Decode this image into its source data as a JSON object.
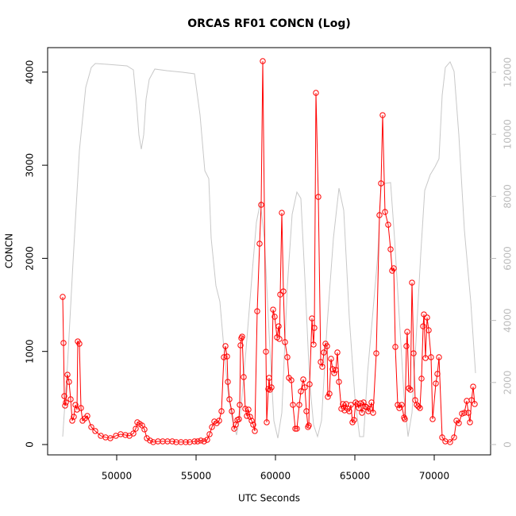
{
  "chart_data": {
    "type": "line",
    "title": "ORCAS RF01 CONCN (Log)",
    "xlabel": "UTC Seconds",
    "ylabel": "CONCN",
    "xlim": [
      45650,
      73550
    ],
    "xticks": [
      50000,
      55000,
      60000,
      65000,
      70000
    ],
    "ylim": [
      -111,
      4263
    ],
    "yticks": [
      0,
      1000,
      2000,
      3000,
      4000
    ],
    "y2lim": [
      -333,
      12794
    ],
    "y2ticks": [
      0,
      2000,
      4000,
      6000,
      8000,
      10000,
      12000
    ],
    "y2color": "#bbbbbb",
    "series": [
      {
        "color": "#ff0000",
        "marker": "circle",
        "x": [
          46600,
          46650,
          46700,
          46750,
          46800,
          46900,
          47000,
          47100,
          47200,
          47300,
          47400,
          47500,
          47550,
          47650,
          47750,
          47850,
          48000,
          48150,
          48400,
          48650,
          49000,
          49300,
          49600,
          49950,
          50250,
          50550,
          50800,
          51050,
          51200,
          51300,
          51450,
          51600,
          51750,
          51900,
          52100,
          52300,
          52600,
          52900,
          53200,
          53500,
          53750,
          54050,
          54350,
          54600,
          54900,
          55100,
          55300,
          55500,
          55700,
          55850,
          56000,
          56150,
          56300,
          56450,
          56600,
          56750,
          56850,
          56950,
          57000,
          57100,
          57250,
          57400,
          57500,
          57600,
          57700,
          57750,
          57800,
          57850,
          57900,
          58000,
          58100,
          58200,
          58300,
          58400,
          58500,
          58600,
          58700,
          58850,
          59000,
          59100,
          59200,
          59400,
          59450,
          59550,
          59600,
          59650,
          59750,
          59850,
          59950,
          60100,
          60200,
          60250,
          60300,
          60400,
          60500,
          60600,
          60750,
          60850,
          61000,
          61100,
          61250,
          61350,
          61500,
          61600,
          61750,
          61850,
          61950,
          62050,
          62100,
          62150,
          62300,
          62400,
          62450,
          62550,
          62700,
          62850,
          62950,
          63050,
          63150,
          63250,
          63300,
          63400,
          63500,
          63600,
          63700,
          63800,
          63900,
          64000,
          64150,
          64250,
          64350,
          64450,
          64550,
          64650,
          64750,
          64850,
          64950,
          65050,
          65150,
          65250,
          65350,
          65450,
          65550,
          65650,
          65750,
          65850,
          65950,
          66050,
          66150,
          66350,
          66550,
          66650,
          66750,
          66900,
          67100,
          67250,
          67350,
          67450,
          67550,
          67700,
          67800,
          67950,
          68100,
          68150,
          68250,
          68300,
          68400,
          68500,
          68600,
          68700,
          68800,
          68900,
          69000,
          69100,
          69200,
          69300,
          69350,
          69450,
          69550,
          69650,
          69800,
          69900,
          70100,
          70200,
          70300,
          70500,
          70700,
          71000,
          71250,
          71400,
          71550,
          71750,
          71900,
          72050,
          72150,
          72250,
          72350,
          72450,
          72550
        ],
        "values": [
          1586,
          1091,
          520,
          418,
          452,
          750,
          673,
          486,
          256,
          298,
          426,
          375,
          1108,
          1083,
          392,
          256,
          281,
          307,
          188,
          145,
          94,
          77,
          68,
          94,
          111,
          102,
          94,
          119,
          170,
          239,
          222,
          205,
          162,
          68,
          43,
          26,
          34,
          34,
          34,
          34,
          26,
          26,
          26,
          26,
          34,
          34,
          43,
          34,
          51,
          111,
          188,
          247,
          230,
          256,
          358,
          938,
          1057,
          946,
          673,
          486,
          358,
          170,
          213,
          264,
          273,
          426,
          1066,
          1142,
          1159,
          725,
          384,
          307,
          375,
          298,
          256,
          213,
          145,
          1432,
          2157,
          2575,
          4118,
          997,
          239,
          597,
          716,
          588,
          614,
          1449,
          1373,
          1151,
          1270,
          1134,
          1611,
          2489,
          1645,
          1100,
          938,
          716,
          691,
          426,
          170,
          170,
          426,
          571,
          699,
          614,
          358,
          188,
          205,
          648,
          1355,
          1074,
          1253,
          3777,
          2660,
          887,
          835,
          989,
          1083,
          1057,
          512,
          546,
          921,
          810,
          767,
          801,
          989,
          673,
          384,
          435,
          367,
          435,
          384,
          358,
          426,
          239,
          264,
          452,
          435,
          392,
          443,
          341,
          452,
          409,
          401,
          358,
          384,
          452,
          341,
          980,
          2464,
          2805,
          3538,
          2498,
          2361,
          2097,
          1867,
          1893,
          1049,
          426,
          392,
          426,
          290,
          273,
          1057,
          1211,
          605,
          588,
          1739,
          980,
          477,
          426,
          409,
          392,
          708,
          1270,
          1398,
          929,
          1364,
          1228,
          938,
          273,
          656,
          759,
          938,
          77,
          34,
          26,
          77,
          256,
          230,
          332,
          341,
          469,
          341,
          239,
          477,
          622,
          435
        ]
      },
      {
        "color": "#c8c8c8",
        "axis": "y2",
        "x": [
          46600,
          46900,
          47250,
          47650,
          48050,
          48400,
          48650,
          49400,
          50650,
          51050,
          51250,
          51400,
          51550,
          51700,
          51850,
          52050,
          52400,
          53150,
          54150,
          54900,
          55250,
          55550,
          55800,
          55950,
          56250,
          56500,
          56800,
          57050,
          57300,
          57550,
          57800,
          58150,
          58550,
          58800,
          59050,
          59300,
          59650,
          59900,
          60150,
          60400,
          60750,
          61050,
          61350,
          61600,
          61850,
          62150,
          62400,
          62650,
          62900,
          63250,
          63650,
          64000,
          64300,
          64650,
          65000,
          65300,
          65550,
          65800,
          66150,
          66450,
          66650,
          66900,
          67250,
          67500,
          67800,
          68100,
          68350,
          68600,
          68850,
          69150,
          69400,
          69750,
          70050,
          70300,
          70500,
          70700,
          71000,
          71250,
          71550,
          71900,
          72300,
          72600
        ],
        "values": [
          256,
          2559,
          5886,
          9468,
          11516,
          12155,
          12283,
          12257,
          12206,
          12078,
          11004,
          9980,
          9520,
          9980,
          11132,
          11772,
          12104,
          12053,
          12002,
          11951,
          10620,
          8829,
          8573,
          6653,
          5118,
          4606,
          2815,
          1535,
          768,
          307,
          1024,
          3071,
          5630,
          7165,
          7805,
          6653,
          3071,
          768,
          205,
          1024,
          5118,
          7421,
          8138,
          7933,
          5374,
          2047,
          640,
          256,
          768,
          3839,
          6653,
          8266,
          7549,
          4094,
          1535,
          256,
          256,
          2303,
          4350,
          6142,
          8317,
          8419,
          8445,
          6653,
          4094,
          1535,
          256,
          1024,
          3327,
          6142,
          8189,
          8701,
          8957,
          9212,
          11260,
          12155,
          12334,
          12027,
          9980,
          6909,
          4606,
          2303
        ]
      }
    ]
  }
}
